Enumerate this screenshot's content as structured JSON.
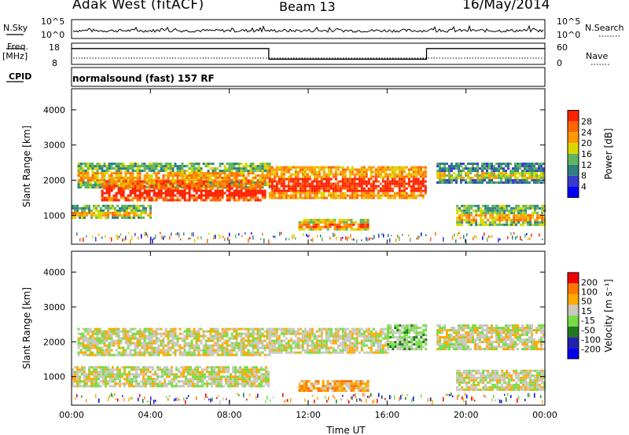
{
  "header": {
    "station": "Adak West (fitACF)",
    "beam": "Beam 13",
    "date": "16/May/2014"
  },
  "params": {
    "nsky_label": "N.Sky",
    "nsearch_label": "N.Search",
    "freq_label": "Freq.",
    "freq_unit": "[MHz]",
    "nave_label": "Nave",
    "cpid_label": "CPID",
    "cpid_value": "normalsound (fast) 157 RF",
    "noise_ticks": [
      "10^5",
      "10^0"
    ],
    "freq_ticks": [
      "18",
      "8"
    ],
    "nave_ticks": [
      "60",
      "0"
    ],
    "freq_line": [
      {
        "t": 0.0,
        "f": 15.5
      },
      {
        "t": 10.0,
        "f": 15.5
      },
      {
        "t": 10.0,
        "f": 10.5
      },
      {
        "t": 18.0,
        "f": 10.5
      },
      {
        "t": 18.0,
        "f": 15.5
      },
      {
        "t": 24.0,
        "f": 15.5
      }
    ]
  },
  "chart_data": [
    {
      "type": "heatmap",
      "name": "power",
      "ylabel": "Slant Range [km]",
      "ylim": [
        180,
        4600
      ],
      "yticks": [
        "4000",
        "3000",
        "2000",
        "1000"
      ],
      "ytick_values": [
        4000,
        3000,
        2000,
        1000
      ],
      "xlim": [
        0,
        24
      ],
      "colorbar_label": "Power [dB]",
      "colorbar_ticks": [
        "28",
        "24",
        "20",
        "16",
        "12",
        "8",
        "4"
      ],
      "colors": [
        "#0000ff",
        "#3b3bcf",
        "#2f7f7f",
        "#5fb55f",
        "#d8d800",
        "#ff9900",
        "#ff6600",
        "#ff2200"
      ],
      "bands": [
        {
          "t": [
            0.3,
            10.0
          ],
          "r": [
            1800,
            2500
          ],
          "level": 3
        },
        {
          "t": [
            1.5,
            9.8
          ],
          "r": [
            1400,
            2000
          ],
          "level": 6
        },
        {
          "t": [
            10.0,
            18.0
          ],
          "r": [
            1500,
            2400
          ],
          "level": 5
        },
        {
          "t": [
            0.0,
            4.0
          ],
          "r": [
            900,
            1300
          ],
          "level": 3
        },
        {
          "t": [
            11.5,
            15.0
          ],
          "r": [
            600,
            900
          ],
          "level": 4
        },
        {
          "t": [
            18.5,
            24.0
          ],
          "r": [
            1900,
            2500
          ],
          "level": 2
        },
        {
          "t": [
            19.5,
            24.0
          ],
          "r": [
            700,
            1300
          ],
          "level": 3
        }
      ]
    },
    {
      "type": "heatmap",
      "name": "velocity",
      "ylabel": "Slant Range [km]",
      "ylim": [
        180,
        4600
      ],
      "yticks": [
        "4000",
        "3000",
        "2000",
        "1000"
      ],
      "ytick_values": [
        4000,
        3000,
        2000,
        1000
      ],
      "xlim": [
        0,
        24
      ],
      "xlabel": "Time UT",
      "xticks": [
        "00:00",
        "04:00",
        "08:00",
        "12:00",
        "16:00",
        "20:00",
        "00:00"
      ],
      "xtick_values": [
        0,
        4,
        8,
        12,
        16,
        20,
        24
      ],
      "colorbar_label": "Velocity [m s⁻¹]",
      "colorbar_ticks": [
        "200",
        "100",
        "50",
        "15",
        "-15",
        "-50",
        "-100",
        "-200"
      ],
      "colors": [
        "#0000ee",
        "#2222aa",
        "#227722",
        "#77dd44",
        "#c8c8c0",
        "#ffaa00",
        "#ff7700",
        "#ee0000"
      ],
      "bands": [
        {
          "t": [
            0.3,
            10.0
          ],
          "r": [
            1600,
            2400
          ],
          "level": 4
        },
        {
          "t": [
            10.0,
            16.0
          ],
          "r": [
            1700,
            2400
          ],
          "level": 4
        },
        {
          "t": [
            16.0,
            18.0
          ],
          "r": [
            1800,
            2500
          ],
          "level": 3
        },
        {
          "t": [
            0.0,
            10.0
          ],
          "r": [
            700,
            1300
          ],
          "level": 4
        },
        {
          "t": [
            11.5,
            15.0
          ],
          "r": [
            600,
            900
          ],
          "level": 5
        },
        {
          "t": [
            18.5,
            24.0
          ],
          "r": [
            1800,
            2500
          ],
          "level": 4
        },
        {
          "t": [
            19.5,
            24.0
          ],
          "r": [
            600,
            1200
          ],
          "level": 4
        }
      ]
    }
  ]
}
